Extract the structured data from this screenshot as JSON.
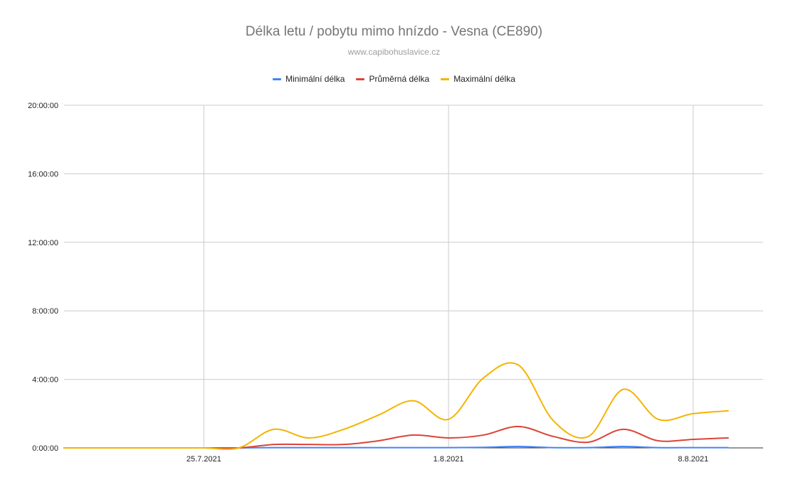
{
  "chart_data": {
    "type": "line",
    "title": "Délka letu / pobytu mimo hnízdo - Vesna (CE890)",
    "subtitle": "www.capibohuslavice.cz",
    "ylim": [
      0,
      1200
    ],
    "y_unit": "minutes",
    "y_tick_values": [
      0,
      240,
      480,
      720,
      960,
      1200
    ],
    "y_tick_labels": [
      "0:00:00",
      "4:00:00",
      "8:00:00",
      "12:00:00",
      "16:00:00",
      "20:00:00"
    ],
    "x": [
      "21.7.2021",
      "22.7.2021",
      "23.7.2021",
      "24.7.2021",
      "25.7.2021",
      "26.7.2021",
      "27.7.2021",
      "28.7.2021",
      "29.7.2021",
      "30.7.2021",
      "31.7.2021",
      "1.8.2021",
      "2.8.2021",
      "3.8.2021",
      "4.8.2021",
      "5.8.2021",
      "6.8.2021",
      "7.8.2021",
      "8.8.2021",
      "9.8.2021",
      "10.8.2021"
    ],
    "x_tick_labels": [
      {
        "index": 4,
        "label": "25.7.2021"
      },
      {
        "index": 11,
        "label": "1.8.2021"
      },
      {
        "index": 18,
        "label": "8.8.2021"
      }
    ],
    "grid": true,
    "legend_position": "top",
    "series": [
      {
        "name": "Minimální délka",
        "color": "#4285f4",
        "values": [
          0,
          0,
          0,
          0,
          0,
          0,
          1,
          1,
          1,
          1,
          1,
          1,
          2,
          5,
          1,
          1,
          5,
          1,
          1,
          1,
          null
        ]
      },
      {
        "name": "Průměrná délka",
        "color": "#db4437",
        "values": [
          0,
          0,
          0,
          0,
          0,
          0,
          12,
          12,
          12,
          25,
          45,
          35,
          45,
          75,
          40,
          20,
          65,
          25,
          30,
          35,
          null
        ]
      },
      {
        "name": "Maximální délka",
        "color": "#f4b400",
        "values": [
          0,
          0,
          0,
          0,
          0,
          0,
          65,
          35,
          65,
          115,
          165,
          100,
          245,
          290,
          95,
          40,
          205,
          100,
          120,
          130,
          null
        ]
      }
    ]
  }
}
